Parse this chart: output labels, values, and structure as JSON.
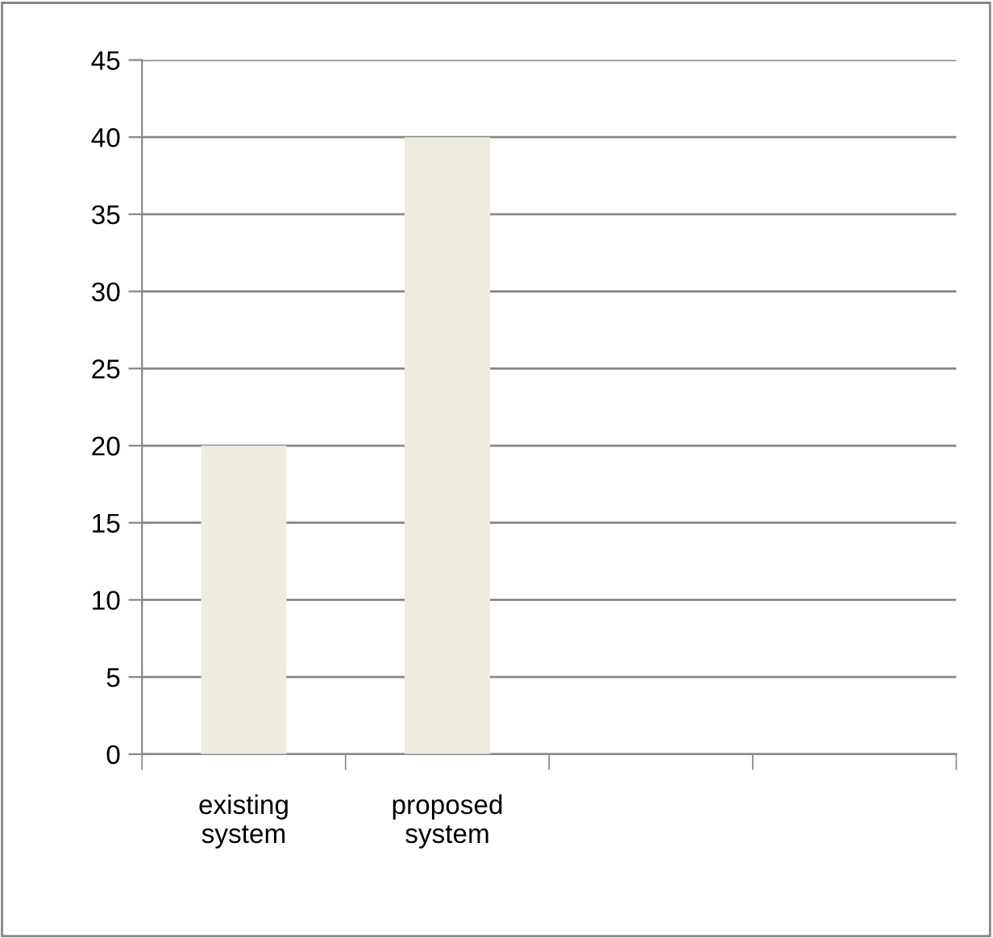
{
  "chart_data": {
    "type": "bar",
    "categories": [
      "existing\nsystem",
      "proposed\nsystem",
      null,
      null
    ],
    "values": [
      20,
      40,
      null,
      null
    ],
    "color": "#eeece1",
    "ylim": [
      0,
      45
    ],
    "yticks": [
      0,
      5,
      10,
      15,
      20,
      25,
      30,
      35,
      40,
      45
    ],
    "grid": "y",
    "legend": false
  }
}
